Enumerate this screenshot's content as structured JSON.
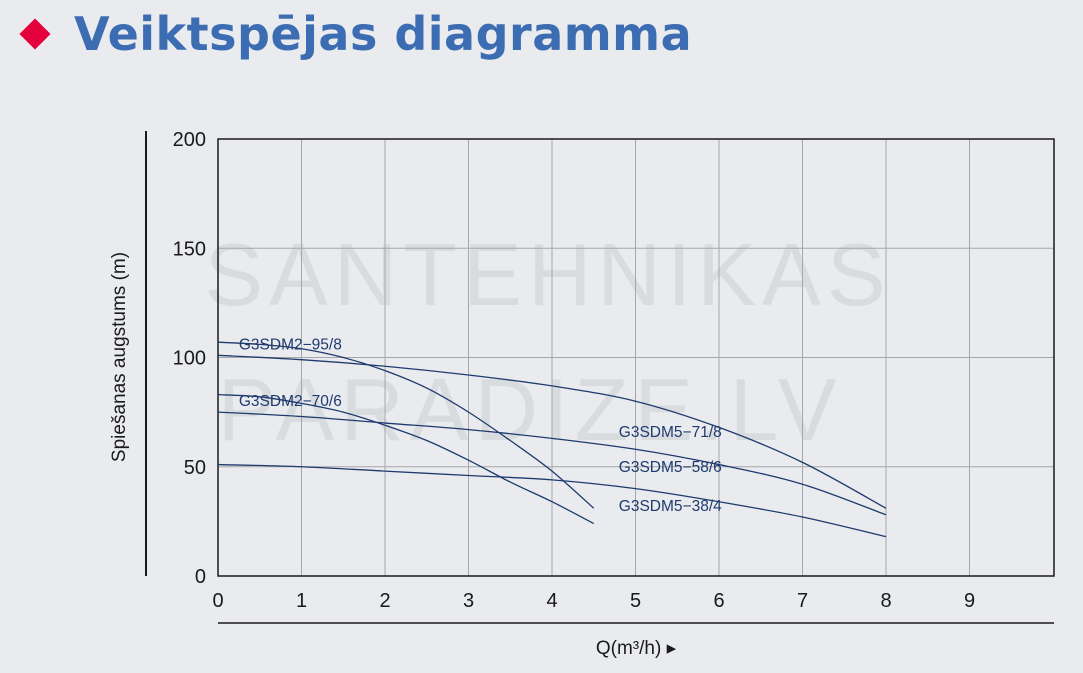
{
  "header": {
    "title": "Veiktspējas diagramma",
    "bullet_color": "#e4003a",
    "title_color": "#3c6db3"
  },
  "watermark": {
    "line1": "SANTEHNIKAS",
    "line2": "PARADIZE.LV"
  },
  "chart_data": {
    "type": "line",
    "title": "",
    "xlabel": "Q(m³/h) ▸",
    "ylabel": "Spiešanas augstums (m)",
    "xlim": [
      0,
      10
    ],
    "ylim": [
      0,
      200
    ],
    "xticks": [
      0,
      1,
      2,
      3,
      4,
      5,
      6,
      7,
      8,
      9
    ],
    "yticks": [
      0,
      50,
      100,
      150,
      200
    ],
    "grid": true,
    "line_color": "#1e3a6e",
    "series": [
      {
        "name": "G3SDM2-95/8",
        "x": [
          0,
          0.5,
          1,
          1.5,
          2,
          2.5,
          3,
          3.5,
          4,
          4.5
        ],
        "y": [
          107,
          106,
          104,
          100,
          94,
          86,
          75,
          62,
          48,
          31
        ]
      },
      {
        "name": "G3SDM2-70/6",
        "x": [
          0,
          0.5,
          1,
          1.5,
          2,
          2.5,
          3,
          3.5,
          4,
          4.5
        ],
        "y": [
          83,
          82,
          79,
          75,
          69,
          62,
          53,
          43,
          34,
          24
        ]
      },
      {
        "name": "G3SDM5-71/8",
        "x": [
          0,
          1,
          2,
          3,
          4,
          5,
          6,
          7,
          8
        ],
        "y": [
          101,
          99,
          96,
          92,
          87,
          80,
          68,
          52,
          31
        ]
      },
      {
        "name": "G3SDM5-58/6",
        "x": [
          0,
          1,
          2,
          3,
          4,
          5,
          6,
          7,
          8
        ],
        "y": [
          75,
          73,
          70,
          67,
          63,
          58,
          51,
          42,
          28
        ]
      },
      {
        "name": "G3SDM5-38/4",
        "x": [
          0,
          1,
          2,
          3,
          4,
          5,
          6,
          7,
          8
        ],
        "y": [
          51,
          50,
          48,
          46,
          44,
          40,
          34,
          27,
          18
        ]
      }
    ],
    "labels": [
      {
        "text": "G3SDM2−95/8",
        "x": 0.25,
        "y": 106
      },
      {
        "text": "G3SDM2−70/6",
        "x": 0.25,
        "y": 80
      },
      {
        "text": "G3SDM5−71/8",
        "x": 4.8,
        "y": 66
      },
      {
        "text": "G3SDM5−58/6",
        "x": 4.8,
        "y": 50
      },
      {
        "text": "G3SDM5−38/4",
        "x": 4.8,
        "y": 32
      }
    ]
  }
}
